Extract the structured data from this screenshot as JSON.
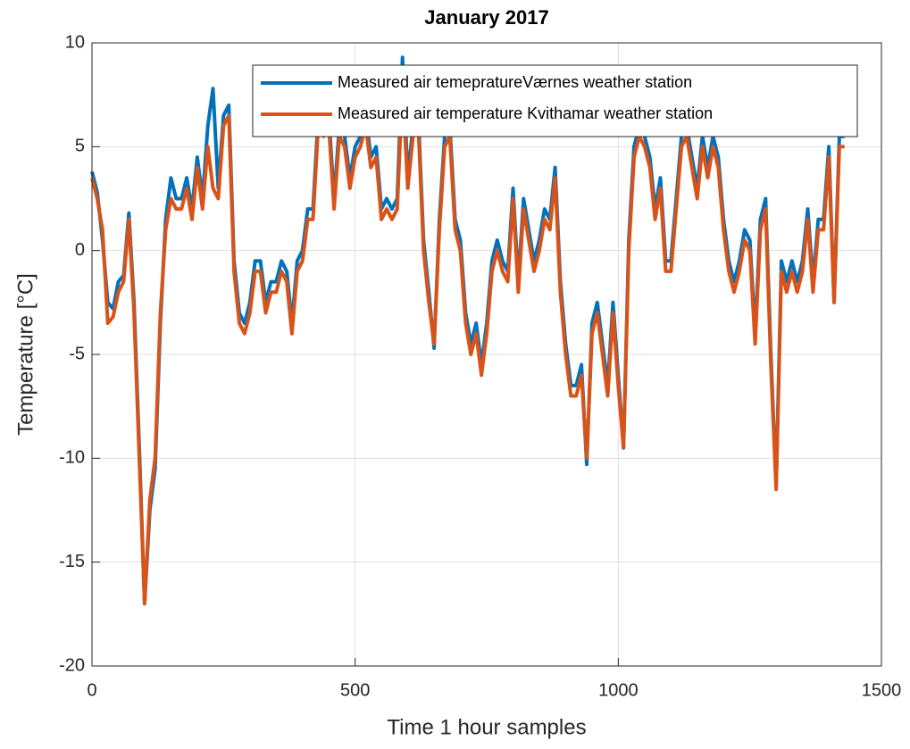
{
  "chart_data": {
    "type": "line",
    "title": "January 2017",
    "x_label": "Time 1 hour samples",
    "y_label": "Temperature [°C]",
    "x": [
      0,
      10,
      20,
      30,
      40,
      50,
      60,
      70,
      80,
      90,
      100,
      110,
      120,
      130,
      140,
      150,
      160,
      170,
      180,
      190,
      200,
      210,
      220,
      230,
      240,
      250,
      260,
      270,
      280,
      290,
      300,
      310,
      320,
      330,
      340,
      350,
      360,
      370,
      380,
      390,
      400,
      410,
      420,
      430,
      440,
      450,
      460,
      470,
      480,
      490,
      500,
      510,
      520,
      530,
      540,
      550,
      560,
      570,
      580,
      590,
      600,
      610,
      620,
      630,
      640,
      650,
      660,
      670,
      680,
      690,
      700,
      710,
      720,
      730,
      740,
      750,
      760,
      770,
      780,
      790,
      800,
      810,
      820,
      830,
      840,
      850,
      860,
      870,
      880,
      890,
      900,
      910,
      920,
      930,
      940,
      950,
      960,
      970,
      980,
      990,
      1000,
      1010,
      1020,
      1030,
      1040,
      1050,
      1060,
      1070,
      1080,
      1090,
      1100,
      1110,
      1120,
      1130,
      1140,
      1150,
      1160,
      1170,
      1180,
      1190,
      1200,
      1210,
      1220,
      1230,
      1240,
      1250,
      1260,
      1270,
      1280,
      1290,
      1300,
      1310,
      1320,
      1330,
      1340,
      1350,
      1360,
      1370,
      1380,
      1390,
      1400,
      1410,
      1420,
      1430
    ],
    "series": [
      {
        "name": "Measured air temepratureVærnes weather station",
        "color": "#0072bd",
        "values": [
          3.8,
          2.8,
          0.5,
          -2.5,
          -2.8,
          -1.5,
          -1.2,
          1.8,
          -2.5,
          -9.5,
          -17,
          -12.5,
          -10.5,
          -3.5,
          1.5,
          3.5,
          2.5,
          2.5,
          3.5,
          2,
          4.5,
          2.5,
          6,
          7.8,
          3,
          6.5,
          7,
          -0.5,
          -3,
          -3.5,
          -2.5,
          -0.5,
          -0.5,
          -2.5,
          -1.5,
          -1.5,
          -0.5,
          -1,
          -3.5,
          -0.5,
          0,
          2,
          2,
          6.5,
          6,
          6.5,
          2.5,
          6,
          5.5,
          3.5,
          5,
          5.5,
          6.5,
          4.5,
          5,
          2,
          2.5,
          2,
          2.5,
          9.3,
          3.5,
          6,
          6.5,
          0.5,
          -2,
          -4.7,
          1.5,
          5.5,
          6,
          1.5,
          0.5,
          -3,
          -4.5,
          -3.5,
          -5.5,
          -3.5,
          -0.5,
          0.5,
          -0.5,
          -1,
          3,
          -1.5,
          2.5,
          1,
          -0.5,
          0.5,
          2,
          1.5,
          4,
          -1.5,
          -4.5,
          -6.5,
          -6.5,
          -5.5,
          -10.3,
          -3.5,
          -2.5,
          -4.5,
          -6.5,
          -2.5,
          -6,
          -9.5,
          0.5,
          5,
          6,
          5.5,
          4.5,
          2,
          3.5,
          -0.5,
          -0.5,
          2.5,
          5.5,
          6,
          4.5,
          3,
          5.5,
          4,
          5.5,
          4.5,
          1.5,
          -0.5,
          -1.5,
          -0.5,
          1,
          0.5,
          -4,
          1.5,
          2.5,
          -5,
          -11.3,
          -0.5,
          -1.5,
          -0.5,
          -1.5,
          -0.5,
          2,
          -1.5,
          1.5,
          1.5,
          5,
          -2.5,
          5.5,
          5.5
        ]
      },
      {
        "name": "Measured air temperature Kvithamar weather station",
        "color": "#d95319",
        "values": [
          3.5,
          2.5,
          1,
          -3.5,
          -3.2,
          -2,
          -1.5,
          1.5,
          -3,
          -10,
          -17,
          -12,
          -10,
          -3,
          1,
          2.5,
          2,
          2,
          3,
          1.5,
          4,
          2,
          5,
          3,
          2.5,
          6,
          6.5,
          -1,
          -3.5,
          -4,
          -3,
          -1,
          -1,
          -3,
          -2,
          -2,
          -1,
          -1.5,
          -4,
          -1,
          -0.5,
          1.5,
          1.5,
          6,
          5.5,
          6,
          2,
          5.5,
          5,
          3,
          4.5,
          5,
          6,
          4,
          4.5,
          1.5,
          2,
          1.5,
          2,
          8,
          3,
          5.5,
          6,
          0,
          -2.5,
          -4.5,
          1,
          5,
          5.5,
          1,
          0,
          -3.5,
          -5,
          -4,
          -6,
          -4,
          -1,
          0,
          -1,
          -1.5,
          2.5,
          -2,
          2,
          0.5,
          -1,
          0,
          1.5,
          1,
          3.5,
          -2,
          -5,
          -7,
          -7,
          -6,
          -10,
          -4,
          -3,
          -5,
          -7,
          -3,
          -6.5,
          -9.5,
          0,
          4.5,
          5.5,
          5,
          4,
          1.5,
          3,
          -1,
          -1,
          2,
          5,
          5.5,
          4,
          2.5,
          5,
          3.5,
          5,
          4,
          1,
          -1,
          -2,
          -1,
          0.5,
          0,
          -4.5,
          1,
          2,
          -5.5,
          -11.5,
          -1,
          -2,
          -1,
          -2,
          -1,
          1.5,
          -2,
          1,
          1,
          4.5,
          -2.5,
          5,
          5
        ]
      }
    ],
    "xlim": [
      0,
      1500
    ],
    "xticks": [
      0,
      500,
      1000,
      1500
    ],
    "ylim": [
      -20,
      10
    ],
    "yticks": [
      -20,
      -15,
      -10,
      -5,
      0,
      5,
      10
    ],
    "grid": true,
    "legend": "upper right"
  }
}
